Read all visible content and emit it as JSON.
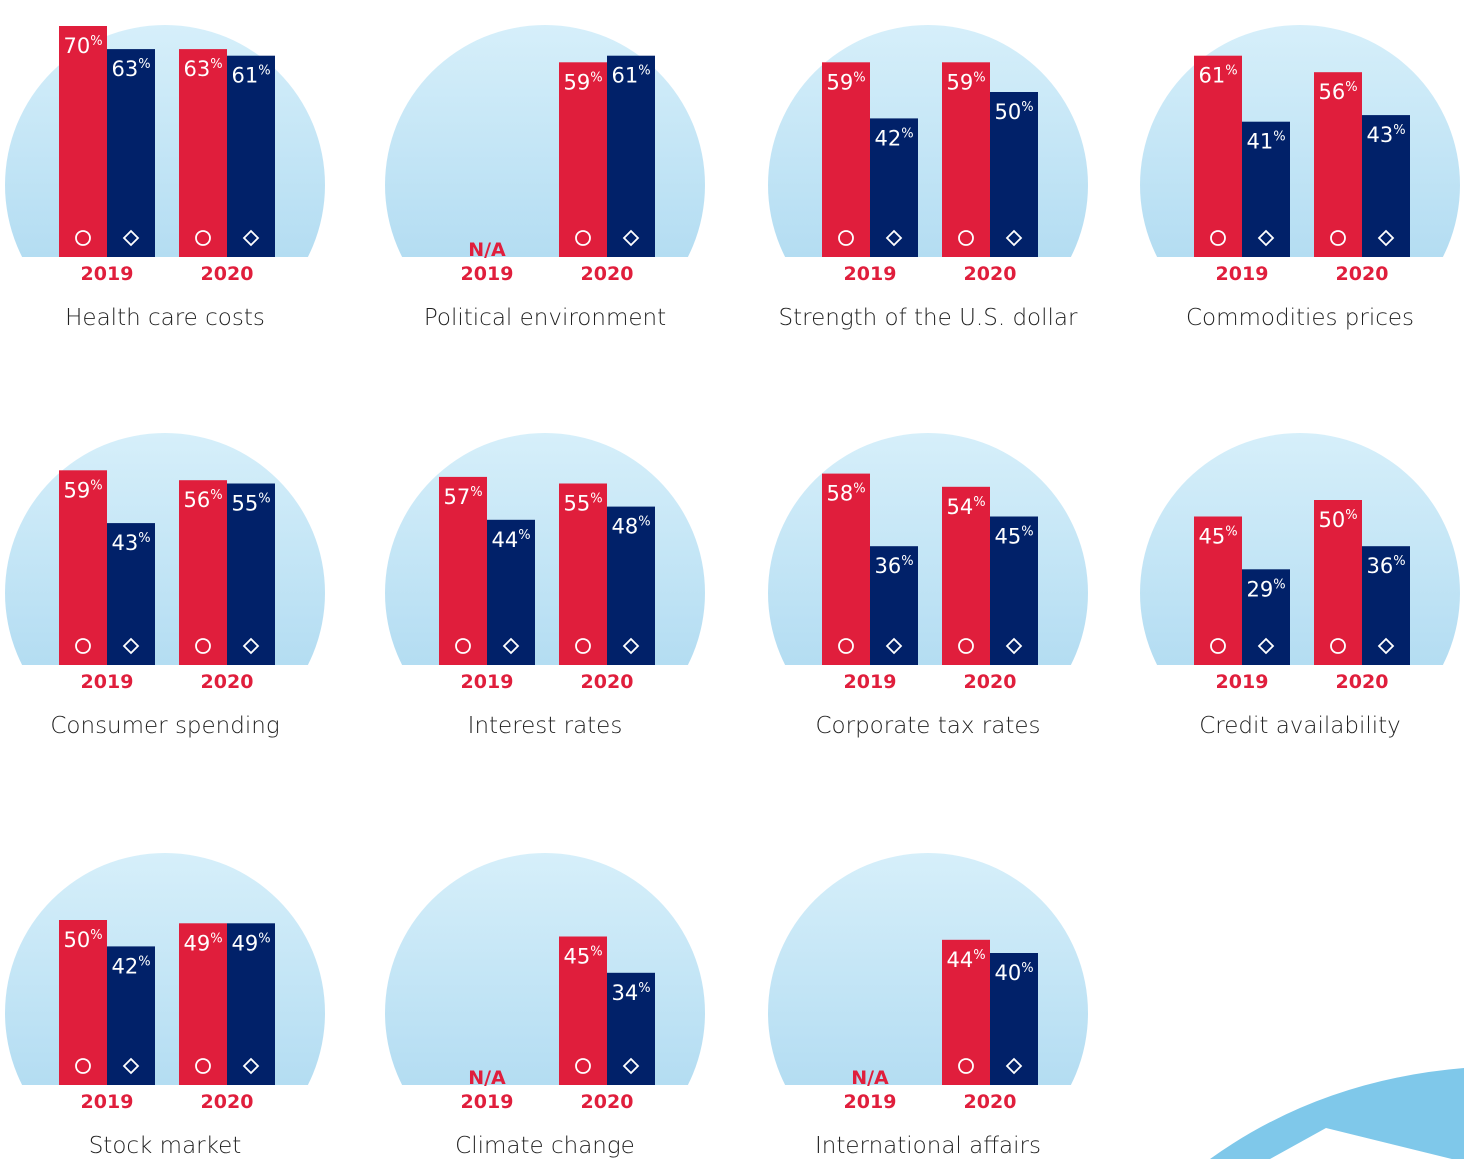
{
  "chart_data": [
    {
      "type": "bar",
      "title": "Health care costs",
      "categories": [
        "2019",
        "2020"
      ],
      "series": [
        {
          "color": "#e01e3c",
          "values": [
            70,
            63
          ],
          "value_labels": [
            "70%",
            "63%"
          ]
        },
        {
          "color": "#012169",
          "values": [
            63,
            61
          ],
          "value_labels": [
            "63%",
            "61%"
          ]
        }
      ]
    },
    {
      "type": "bar",
      "title": "Political environment",
      "categories": [
        "2019",
        "2020"
      ],
      "series": [
        {
          "color": "#e01e3c",
          "values": [
            null,
            59
          ],
          "value_labels": [
            "N/A",
            "59%"
          ]
        },
        {
          "color": "#012169",
          "values": [
            null,
            61
          ],
          "value_labels": [
            null,
            "61%"
          ]
        }
      ]
    },
    {
      "type": "bar",
      "title": "Strength of the U.S. dollar",
      "categories": [
        "2019",
        "2020"
      ],
      "series": [
        {
          "color": "#e01e3c",
          "values": [
            59,
            59
          ],
          "value_labels": [
            "59%",
            "59%"
          ]
        },
        {
          "color": "#012169",
          "values": [
            42,
            50
          ],
          "value_labels": [
            "42%",
            "50%"
          ]
        }
      ]
    },
    {
      "type": "bar",
      "title": "Commodities prices",
      "categories": [
        "2019",
        "2020"
      ],
      "series": [
        {
          "color": "#e01e3c",
          "values": [
            61,
            56
          ],
          "value_labels": [
            "61%",
            "56%"
          ]
        },
        {
          "color": "#012169",
          "values": [
            41,
            43
          ],
          "value_labels": [
            "41%",
            "43%"
          ]
        }
      ]
    },
    {
      "type": "bar",
      "title": "Consumer spending",
      "categories": [
        "2019",
        "2020"
      ],
      "series": [
        {
          "color": "#e01e3c",
          "values": [
            59,
            56
          ],
          "value_labels": [
            "59%",
            "56%"
          ]
        },
        {
          "color": "#012169",
          "values": [
            43,
            55
          ],
          "value_labels": [
            "43%",
            "55%"
          ]
        }
      ]
    },
    {
      "type": "bar",
      "title": "Interest rates",
      "categories": [
        "2019",
        "2020"
      ],
      "series": [
        {
          "color": "#e01e3c",
          "values": [
            57,
            55
          ],
          "value_labels": [
            "57%",
            "55%"
          ]
        },
        {
          "color": "#012169",
          "values": [
            44,
            48
          ],
          "value_labels": [
            "44%",
            "48%"
          ]
        }
      ]
    },
    {
      "type": "bar",
      "title": "Corporate tax rates",
      "categories": [
        "2019",
        "2020"
      ],
      "series": [
        {
          "color": "#e01e3c",
          "values": [
            58,
            54
          ],
          "value_labels": [
            "58%",
            "54%"
          ]
        },
        {
          "color": "#012169",
          "values": [
            36,
            45
          ],
          "value_labels": [
            "36%",
            "45%"
          ]
        }
      ]
    },
    {
      "type": "bar",
      "title": "Credit availability",
      "categories": [
        "2019",
        "2020"
      ],
      "series": [
        {
          "color": "#e01e3c",
          "values": [
            45,
            50
          ],
          "value_labels": [
            "45%",
            "50%"
          ]
        },
        {
          "color": "#012169",
          "values": [
            29,
            36
          ],
          "value_labels": [
            "29%",
            "36%"
          ]
        }
      ]
    },
    {
      "type": "bar",
      "title": "Stock market",
      "categories": [
        "2019",
        "2020"
      ],
      "series": [
        {
          "color": "#e01e3c",
          "values": [
            50,
            49
          ],
          "value_labels": [
            "50%",
            "49%"
          ]
        },
        {
          "color": "#012169",
          "values": [
            42,
            49
          ],
          "value_labels": [
            "42%",
            "49%"
          ]
        }
      ]
    },
    {
      "type": "bar",
      "title": "Climate change",
      "categories": [
        "2019",
        "2020"
      ],
      "series": [
        {
          "color": "#e01e3c",
          "values": [
            null,
            45
          ],
          "value_labels": [
            "N/A",
            "45%"
          ]
        },
        {
          "color": "#012169",
          "values": [
            null,
            34
          ],
          "value_labels": [
            null,
            "34%"
          ]
        }
      ]
    },
    {
      "type": "bar",
      "title": "International affairs",
      "categories": [
        "2019",
        "2020"
      ],
      "series": [
        {
          "color": "#e01e3c",
          "values": [
            null,
            44
          ],
          "value_labels": [
            "N/A",
            "44%"
          ]
        },
        {
          "color": "#012169",
          "values": [
            null,
            40
          ],
          "value_labels": [
            null,
            "40%"
          ]
        }
      ]
    }
  ]
}
